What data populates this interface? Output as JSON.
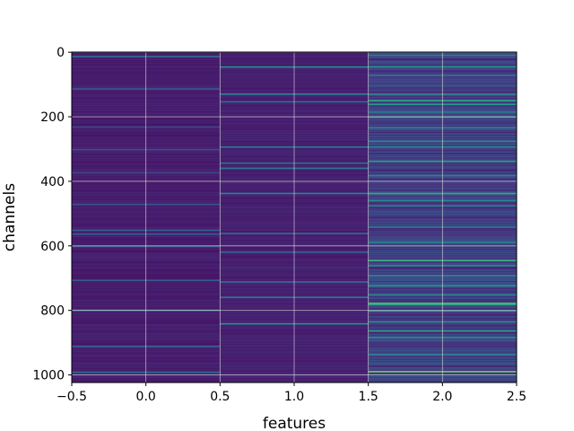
{
  "chart_data": {
    "type": "heatmap",
    "title": "",
    "xlabel": "features",
    "ylabel": "channels",
    "xlim": [
      -0.5,
      2.5
    ],
    "ylim": [
      1023.5,
      -0.5
    ],
    "y_inverted": true,
    "grid": true,
    "colormap": "viridis",
    "xticks": [
      -0.5,
      0.0,
      0.5,
      1.0,
      1.5,
      2.0,
      2.5
    ],
    "xtick_labels": [
      "−0.5",
      "0.0",
      "0.5",
      "1.0",
      "1.5",
      "2.0",
      "2.5"
    ],
    "yticks": [
      0,
      200,
      400,
      600,
      800,
      1000
    ],
    "ytick_labels": [
      "0",
      "200",
      "400",
      "600",
      "800",
      "1000"
    ],
    "columns": [
      0,
      1,
      2
    ],
    "rows": 1024,
    "value_range": [
      0,
      1
    ],
    "column_baseline": [
      0.07,
      0.08,
      0.15
    ],
    "highlights": [
      {
        "column": 0,
        "rows": [
          12,
          112,
          230,
          300,
          372,
          470,
          550,
          562,
          600,
          705,
          798,
          910,
          990
        ],
        "values": [
          0.38,
          0.28,
          0.22,
          0.24,
          0.22,
          0.26,
          0.32,
          0.3,
          0.28,
          0.3,
          0.45,
          0.32,
          0.36
        ]
      },
      {
        "column": 1,
        "rows": [
          44,
          128,
          152,
          292,
          342,
          358,
          436,
          560,
          618,
          710,
          758,
          840
        ],
        "values": [
          0.5,
          0.45,
          0.35,
          0.4,
          0.38,
          0.42,
          0.45,
          0.35,
          0.33,
          0.36,
          0.4,
          0.52
        ]
      },
      {
        "column": 2,
        "rows": [
          8,
          44,
          70,
          128,
          148,
          160,
          184,
          200,
          232,
          274,
          292,
          336,
          380,
          436,
          458,
          474,
          540,
          588,
          644,
          660,
          690,
          722,
          750,
          776,
          780,
          800,
          834,
          862,
          882,
          936,
          988
        ],
        "values": [
          0.45,
          0.55,
          0.4,
          0.5,
          0.62,
          0.55,
          0.45,
          0.5,
          0.42,
          0.48,
          0.52,
          0.58,
          0.45,
          0.62,
          0.48,
          0.44,
          0.42,
          0.46,
          0.66,
          0.5,
          0.48,
          0.52,
          0.45,
          0.7,
          0.62,
          0.55,
          0.5,
          0.58,
          0.52,
          0.48,
          0.78
        ]
      }
    ]
  }
}
